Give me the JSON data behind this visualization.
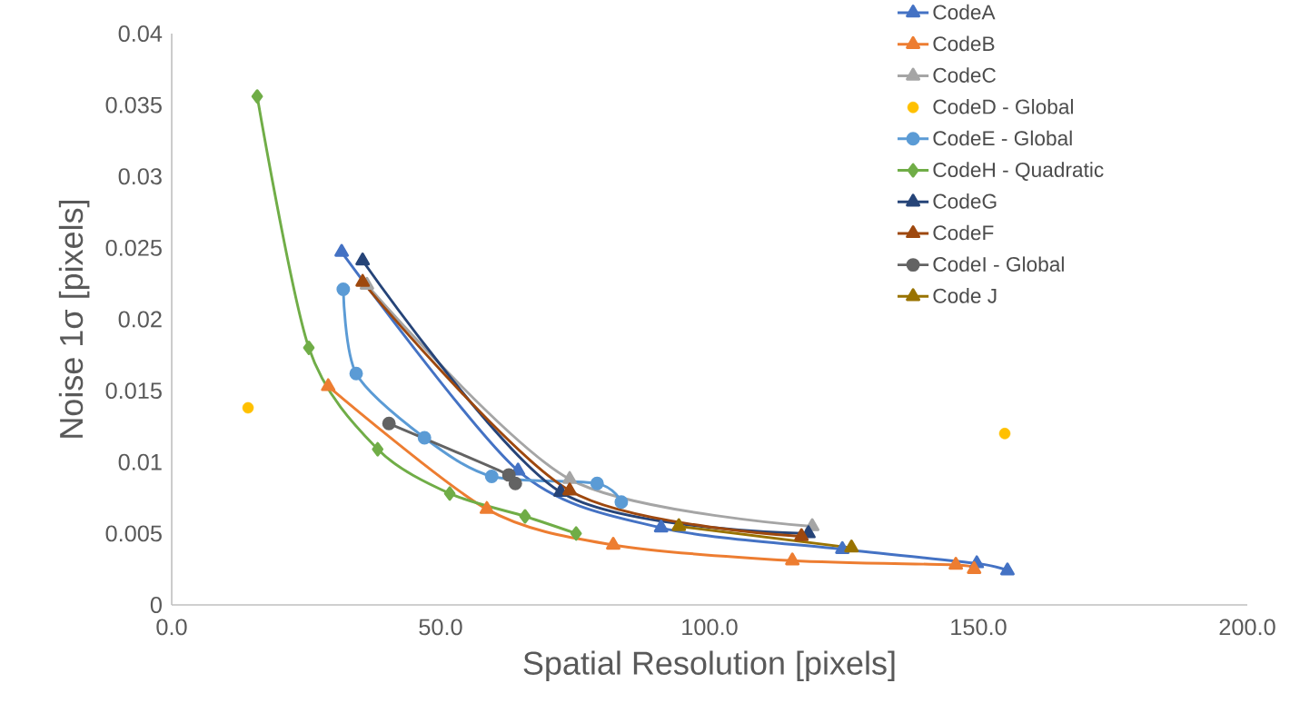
{
  "chart_data": {
    "type": "line",
    "xlabel": "Spatial Resolution [pixels]",
    "ylabel": "Noise 1σ [pixels]",
    "xlim": [
      0,
      200
    ],
    "ylim": [
      0,
      0.04
    ],
    "xticks": [
      {
        "value": 0,
        "label": "0.0"
      },
      {
        "value": 50,
        "label": "50.0"
      },
      {
        "value": 100,
        "label": "100.0"
      },
      {
        "value": 150,
        "label": "150.0"
      },
      {
        "value": 200,
        "label": "200.0"
      }
    ],
    "yticks": [
      0,
      0.005,
      0.01,
      0.015,
      0.02,
      0.025,
      0.03,
      0.035,
      0.04
    ],
    "grid": false,
    "legend": "top right",
    "line_style": "solid",
    "series": [
      {
        "name": "CodeA",
        "color": "#4472c4",
        "marker": "triangle",
        "x": [
          31.6,
          64.4,
          91.0,
          124.7,
          149.7,
          155.4
        ],
        "values": [
          0.0247,
          0.0094,
          0.0054,
          0.0039,
          0.0029,
          0.0024
        ]
      },
      {
        "name": "CodeB",
        "color": "#ed7d31",
        "marker": "triangle",
        "x": [
          29.1,
          58.6,
          82.1,
          115.4,
          145.8,
          149.2
        ],
        "values": [
          0.0153,
          0.0067,
          0.0042,
          0.0031,
          0.0028,
          0.0025
        ]
      },
      {
        "name": "CodeC",
        "color": "#a5a5a5",
        "marker": "triangle",
        "x": [
          36.3,
          74.0,
          119.1
        ],
        "values": [
          0.0224,
          0.0088,
          0.0055
        ]
      },
      {
        "name": "CodeD - Global",
        "color": "#ffc000",
        "marker": "circle",
        "type": "scatter",
        "x": [
          14.2,
          154.9
        ],
        "values": [
          0.0138,
          0.012
        ]
      },
      {
        "name": "CodeE - Global",
        "color": "#5b9bd5",
        "marker": "circle",
        "x": [
          31.9,
          34.3,
          47.0,
          59.5,
          79.1,
          83.6
        ],
        "values": [
          0.0221,
          0.0162,
          0.0117,
          0.009,
          0.0085,
          0.0072
        ]
      },
      {
        "name": "CodeH - Quadratic",
        "color": "#70ad47",
        "marker": "diamond",
        "x": [
          15.9,
          25.5,
          38.3,
          51.7,
          65.7,
          75.2
        ],
        "values": [
          0.0356,
          0.018,
          0.0109,
          0.0078,
          0.0062,
          0.005
        ]
      },
      {
        "name": "CodeG",
        "color": "#264478",
        "marker": "triangle",
        "x": [
          35.5,
          72.3,
          118.4
        ],
        "values": [
          0.0241,
          0.0079,
          0.005
        ]
      },
      {
        "name": "CodeF",
        "color": "#9e480e",
        "marker": "triangle",
        "x": [
          35.5,
          74.0,
          117.1
        ],
        "values": [
          0.0226,
          0.008,
          0.0048
        ]
      },
      {
        "name": "CodeI - Global",
        "color": "#636363",
        "marker": "circle",
        "x": [
          40.4,
          62.7,
          63.9
        ],
        "values": [
          0.0127,
          0.0091,
          0.0085
        ]
      },
      {
        "name": "Code J",
        "color": "#997300",
        "marker": "triangle",
        "x": [
          94.3,
          126.4
        ],
        "values": [
          0.0055,
          0.004
        ]
      }
    ]
  }
}
